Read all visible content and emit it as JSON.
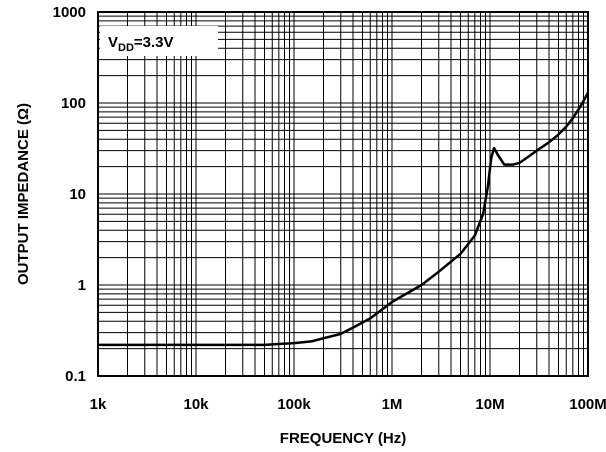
{
  "chart_data": {
    "type": "line",
    "xlabel": "FREQUENCY (Hz)",
    "ylabel": "OUTPUT IMPEDANCE (Ω)",
    "x_scale": "log",
    "y_scale": "log",
    "xlim": [
      1000,
      100000000
    ],
    "ylim": [
      0.1,
      1000
    ],
    "grid": true,
    "x_tick_values": [
      1000,
      10000,
      100000,
      1000000,
      10000000,
      100000000
    ],
    "x_tick_labels": [
      "1k",
      "10k",
      "100k",
      "1M",
      "10M",
      "100M"
    ],
    "y_tick_values": [
      0.1,
      1,
      10,
      100,
      1000
    ],
    "y_tick_labels": [
      "0.1",
      "1",
      "10",
      "100",
      "1000"
    ],
    "annotation": {
      "main": "V",
      "sub": "DD",
      "rest": "=3.3V"
    },
    "series": [
      {
        "x": [
          1000,
          10000,
          50000,
          70000,
          100000,
          150000,
          200000,
          300000,
          400000,
          600000,
          1000000,
          2000000,
          3000000,
          5000000,
          7000000,
          8500000,
          9500000,
          10300000,
          11000000,
          12000000,
          14000000,
          17000000,
          20000000,
          25000000,
          30000000,
          40000000,
          50000000,
          60000000,
          70000000,
          80000000,
          90000000,
          100000000
        ],
        "y": [
          0.22,
          0.22,
          0.22,
          0.225,
          0.23,
          0.24,
          0.26,
          0.29,
          0.34,
          0.43,
          0.65,
          1.0,
          1.4,
          2.2,
          3.5,
          6.0,
          12.0,
          25.0,
          32.0,
          27.0,
          21.0,
          21.0,
          22.0,
          26.0,
          30.0,
          37.0,
          45.0,
          55.0,
          68.0,
          85.0,
          105.0,
          130.0
        ]
      }
    ]
  }
}
